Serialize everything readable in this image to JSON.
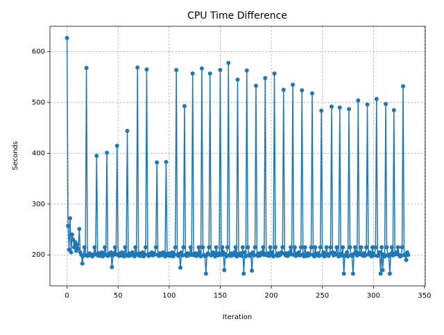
{
  "chart_data": {
    "type": "line",
    "title": "CPU Time Difference",
    "xlabel": "Iteration",
    "ylabel": "Seconds",
    "x": [
      0,
      1,
      2,
      3,
      4,
      5,
      6,
      7,
      8,
      9,
      10,
      11,
      12,
      13,
      14,
      15,
      16,
      17,
      18,
      19,
      20,
      21,
      22,
      23,
      24,
      25,
      26,
      27,
      28,
      29,
      30,
      31,
      32,
      33,
      34,
      35,
      36,
      37,
      38,
      39,
      40,
      41,
      42,
      43,
      44,
      45,
      46,
      47,
      48,
      49,
      50,
      51,
      52,
      53,
      54,
      55,
      56,
      57,
      58,
      59,
      60,
      61,
      62,
      63,
      64,
      65,
      66,
      67,
      68,
      69,
      70,
      71,
      72,
      73,
      74,
      75,
      76,
      77,
      78,
      79,
      80,
      81,
      82,
      83,
      84,
      85,
      86,
      87,
      88,
      89,
      90,
      91,
      92,
      93,
      94,
      95,
      96,
      97,
      98,
      99,
      100,
      101,
      102,
      103,
      104,
      105,
      106,
      107,
      108,
      109,
      110,
      111,
      112,
      113,
      114,
      115,
      116,
      117,
      118,
      119,
      120,
      121,
      122,
      123,
      124,
      125,
      126,
      127,
      128,
      129,
      130,
      131,
      132,
      133,
      134,
      135,
      136,
      137,
      138,
      139,
      140,
      141,
      142,
      143,
      144,
      145,
      146,
      147,
      148,
      149,
      150,
      151,
      152,
      153,
      154,
      155,
      156,
      157,
      158,
      159,
      160,
      161,
      162,
      163,
      164,
      165,
      166,
      167,
      168,
      169,
      170,
      171,
      172,
      173,
      174,
      175,
      176,
      177,
      178,
      179,
      180,
      181,
      182,
      183,
      184,
      185,
      186,
      187,
      188,
      189,
      190,
      191,
      192,
      193,
      194,
      195,
      196,
      197,
      198,
      199,
      200,
      201,
      202,
      203,
      204,
      205,
      206,
      207,
      208,
      209,
      210,
      211,
      212,
      213,
      214,
      215,
      216,
      217,
      218,
      219,
      220,
      221,
      222,
      223,
      224,
      225,
      226,
      227,
      228,
      229,
      230,
      231,
      232,
      233,
      234,
      235,
      236,
      237,
      238,
      239,
      240,
      241,
      242,
      243,
      244,
      245,
      246,
      247,
      248,
      249,
      250,
      251,
      252,
      253,
      254,
      255,
      256,
      257,
      258,
      259,
      260,
      261,
      262,
      263,
      264,
      265,
      266,
      267,
      268,
      269,
      270,
      271,
      272,
      273,
      274,
      275,
      276,
      277,
      278,
      279,
      280,
      281,
      282,
      283,
      284,
      285,
      286,
      287,
      288,
      289,
      290,
      291,
      292,
      293,
      294,
      295,
      296,
      297,
      298,
      299,
      300,
      301,
      302,
      303,
      304,
      305,
      306,
      307,
      308,
      309,
      310,
      311,
      312,
      313,
      314,
      315,
      316,
      317,
      318,
      319,
      320,
      321,
      322,
      323,
      324,
      325,
      326,
      327,
      328,
      329,
      330,
      331,
      332,
      333,
      334
    ],
    "series": [
      {
        "color": "#1f77b4",
        "values": [
          627,
          257,
          210,
          272,
          205,
          240,
          230,
          215,
          225,
          208,
          220,
          212,
          251,
          205,
          200,
          183,
          198,
          215,
          200,
          568,
          198,
          200,
          203,
          199,
          201,
          197,
          200,
          215,
          202,
          395,
          199,
          203,
          198,
          200,
          205,
          197,
          201,
          215,
          200,
          401,
          198,
          202,
          200,
          205,
          176,
          199,
          203,
          215,
          201,
          415,
          200,
          198,
          203,
          199,
          205,
          201,
          197,
          215,
          200,
          444,
          198,
          203,
          199,
          201,
          205,
          200,
          197,
          215,
          202,
          569,
          199,
          203,
          198,
          200,
          205,
          197,
          201,
          215,
          565,
          200,
          198,
          202,
          200,
          205,
          199,
          203,
          201,
          215,
          382,
          200,
          198,
          203,
          199,
          201,
          205,
          200,
          197,
          383,
          202,
          199,
          203,
          198,
          200,
          205,
          197,
          201,
          215,
          564,
          200,
          198,
          202,
          175,
          205,
          199,
          215,
          493,
          200,
          198,
          203,
          199,
          201,
          215,
          200,
          557,
          202,
          199,
          203,
          198,
          200,
          215,
          205,
          197,
          567,
          215,
          200,
          198,
          163,
          200,
          203,
          215,
          557,
          199,
          201,
          205,
          200,
          197,
          215,
          202,
          199,
          203,
          564,
          200,
          215,
          205,
          170,
          201,
          197,
          215,
          578,
          200,
          198,
          203,
          199,
          201,
          205,
          215,
          197,
          545,
          202,
          199,
          203,
          198,
          215,
          163,
          205,
          197,
          563,
          215,
          200,
          198,
          202,
          169,
          205,
          199,
          215,
          533,
          200,
          198,
          203,
          199,
          201,
          205,
          215,
          200,
          548,
          202,
          199,
          203,
          198,
          215,
          200,
          205,
          197,
          557,
          215,
          200,
          198,
          203,
          199,
          201,
          205,
          215,
          525,
          202,
          199,
          203,
          198,
          200,
          205,
          215,
          201,
          535,
          200,
          215,
          198,
          202,
          200,
          205,
          199,
          215,
          524,
          201,
          197,
          215,
          200,
          198,
          203,
          199,
          201,
          215,
          518,
          200,
          197,
          215,
          202,
          199,
          203,
          198,
          215,
          484,
          200,
          205,
          197,
          201,
          215,
          200,
          198,
          202,
          215,
          492,
          205,
          199,
          203,
          201,
          215,
          200,
          197,
          490,
          202,
          199,
          215,
          163,
          198,
          200,
          205,
          197,
          487,
          215,
          200,
          198,
          163,
          202,
          215,
          205,
          199,
          504,
          203,
          201,
          215,
          200,
          198,
          203,
          199,
          215,
          496,
          201,
          205,
          200,
          197,
          215,
          202,
          199,
          215,
          507,
          198,
          200,
          205,
          163,
          215,
          170,
          201,
          197,
          497,
          215,
          200,
          198,
          163,
          202,
          215,
          199,
          485,
          203,
          201,
          205,
          215,
          200,
          197,
          198,
          215,
          532,
          200,
          199,
          190,
          205,
          200
        ]
      }
    ],
    "xlim": [
      -16.7,
      350.7
    ],
    "xticks": [
      0,
      50,
      100,
      150,
      200,
      250,
      300,
      350
    ],
    "ylim": [
      139,
      650
    ],
    "yticks": [
      200,
      300,
      400,
      500,
      600
    ],
    "grid": true,
    "markers": true
  }
}
